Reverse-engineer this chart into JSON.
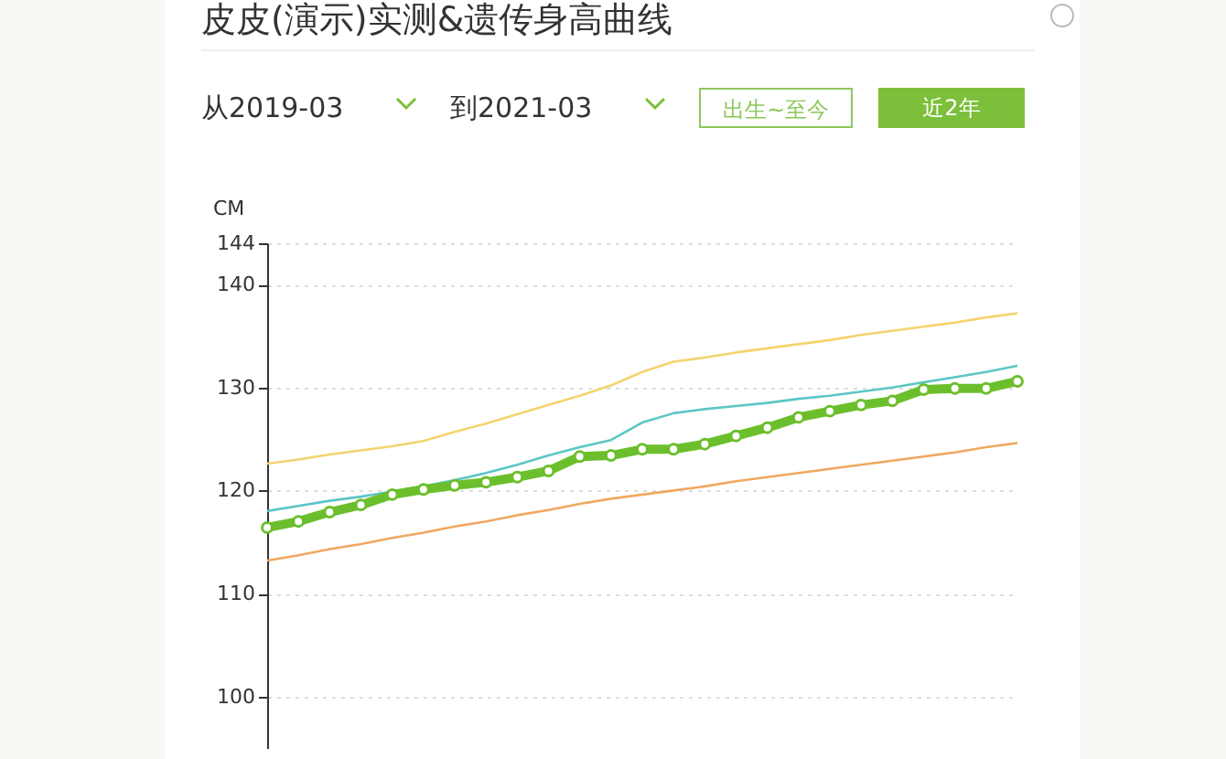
{
  "chart_data": {
    "type": "line",
    "title": "皮皮(演示)实测&遗传身高曲线",
    "ylabel": "CM",
    "annotations": [
      "从2019-03",
      "到2021-03",
      "出生~至今",
      "近2年"
    ],
    "categories": [
      null,
      null,
      null,
      null,
      null,
      null,
      null,
      null,
      null,
      null,
      null,
      null,
      null,
      null,
      null,
      null,
      null,
      null,
      null,
      null,
      null,
      null,
      null,
      null,
      null
    ],
    "series": [
      {
        "color": "#f5d36e",
        "values": [
          122.6,
          123.0,
          123.5,
          123.9,
          124.3,
          124.8,
          125.7,
          126.5,
          127.4,
          128.3,
          129.2,
          130.2,
          131.5,
          132.5,
          132.9,
          133.4,
          133.8,
          134.2,
          134.6,
          135.1,
          135.5,
          135.9,
          136.3,
          136.8,
          137.2
        ]
      },
      {
        "color": "#f0a860",
        "values": [
          113.2,
          113.7,
          114.3,
          114.8,
          115.4,
          115.9,
          116.5,
          117.0,
          117.6,
          118.1,
          118.7,
          119.2,
          119.6,
          120.0,
          120.4,
          120.9,
          121.3,
          121.7,
          122.1,
          122.5,
          122.9,
          123.3,
          123.7,
          124.2,
          124.6
        ]
      },
      {
        "color": "#5cc6c6",
        "values": [
          118.0,
          118.5,
          119.0,
          119.4,
          119.9,
          120.4,
          121.0,
          121.7,
          122.5,
          123.4,
          124.2,
          124.9,
          126.6,
          127.5,
          127.9,
          128.2,
          128.5,
          128.9,
          129.2,
          129.6,
          130.0,
          130.5,
          131.0,
          131.5,
          132.1
        ]
      },
      {
        "color": "#6cbf2c",
        "marker": "circle",
        "values": [
          116.4,
          117.0,
          117.9,
          118.6,
          119.6,
          120.1,
          120.5,
          120.8,
          121.3,
          121.9,
          123.3,
          123.4,
          124.0,
          124.0,
          124.5,
          125.3,
          126.1,
          127.1,
          127.7,
          128.3,
          128.7,
          129.8,
          129.9,
          129.9,
          130.6
        ]
      }
    ],
    "ylim": [
      95,
      144
    ],
    "yticks": [
      100,
      110,
      120,
      130,
      140,
      144
    ],
    "grid": "y",
    "tick_labels": "y"
  }
}
